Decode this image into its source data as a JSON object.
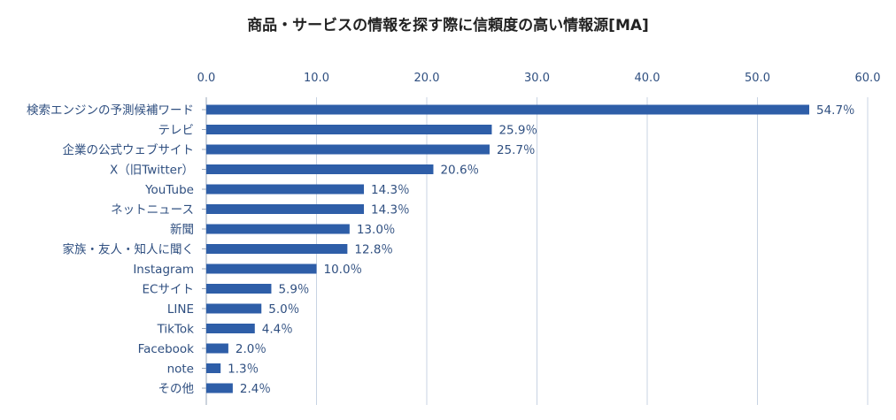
{
  "chart_data": {
    "type": "bar",
    "orientation": "horizontal",
    "title": "商品・サービスの情報を探す際に信頼度の高い情報源[MA]",
    "xlabel": "",
    "ylabel": "",
    "xlim": [
      0,
      60
    ],
    "ticks": [
      "0.0",
      "10.0",
      "20.0",
      "30.0",
      "40.0",
      "50.0",
      "60.0"
    ],
    "tick_values": [
      0,
      10,
      20,
      30,
      40,
      50,
      60
    ],
    "grid": true,
    "axis_position": "top",
    "categories": [
      "検索エンジンの予測候補ワード",
      "テレビ",
      "企業の公式ウェブサイト",
      "X（旧Twitter）",
      "YouTube",
      "ネットニュース",
      "新聞",
      "家族・友人・知人に聞く",
      "Instagram",
      "ECサイト",
      "LINE",
      "TikTok",
      "Facebook",
      "note",
      "その他"
    ],
    "values": [
      54.7,
      25.9,
      25.7,
      20.6,
      14.3,
      14.3,
      13.0,
      12.8,
      10.0,
      5.9,
      5.0,
      4.4,
      2.0,
      1.3,
      2.4
    ],
    "value_labels": [
      "54.7％",
      "25.9％",
      "25.7％",
      "20.6％",
      "14.3％",
      "14.3％",
      "13.0％",
      "12.8％",
      "10.0％",
      "5.9％",
      "5.0％",
      "4.4％",
      "2.0％",
      "1.3％",
      "2.4％"
    ],
    "bar_color": "#2e5ea8",
    "grid_color": "#c8d3e3",
    "text_color": "#2f4f80"
  }
}
